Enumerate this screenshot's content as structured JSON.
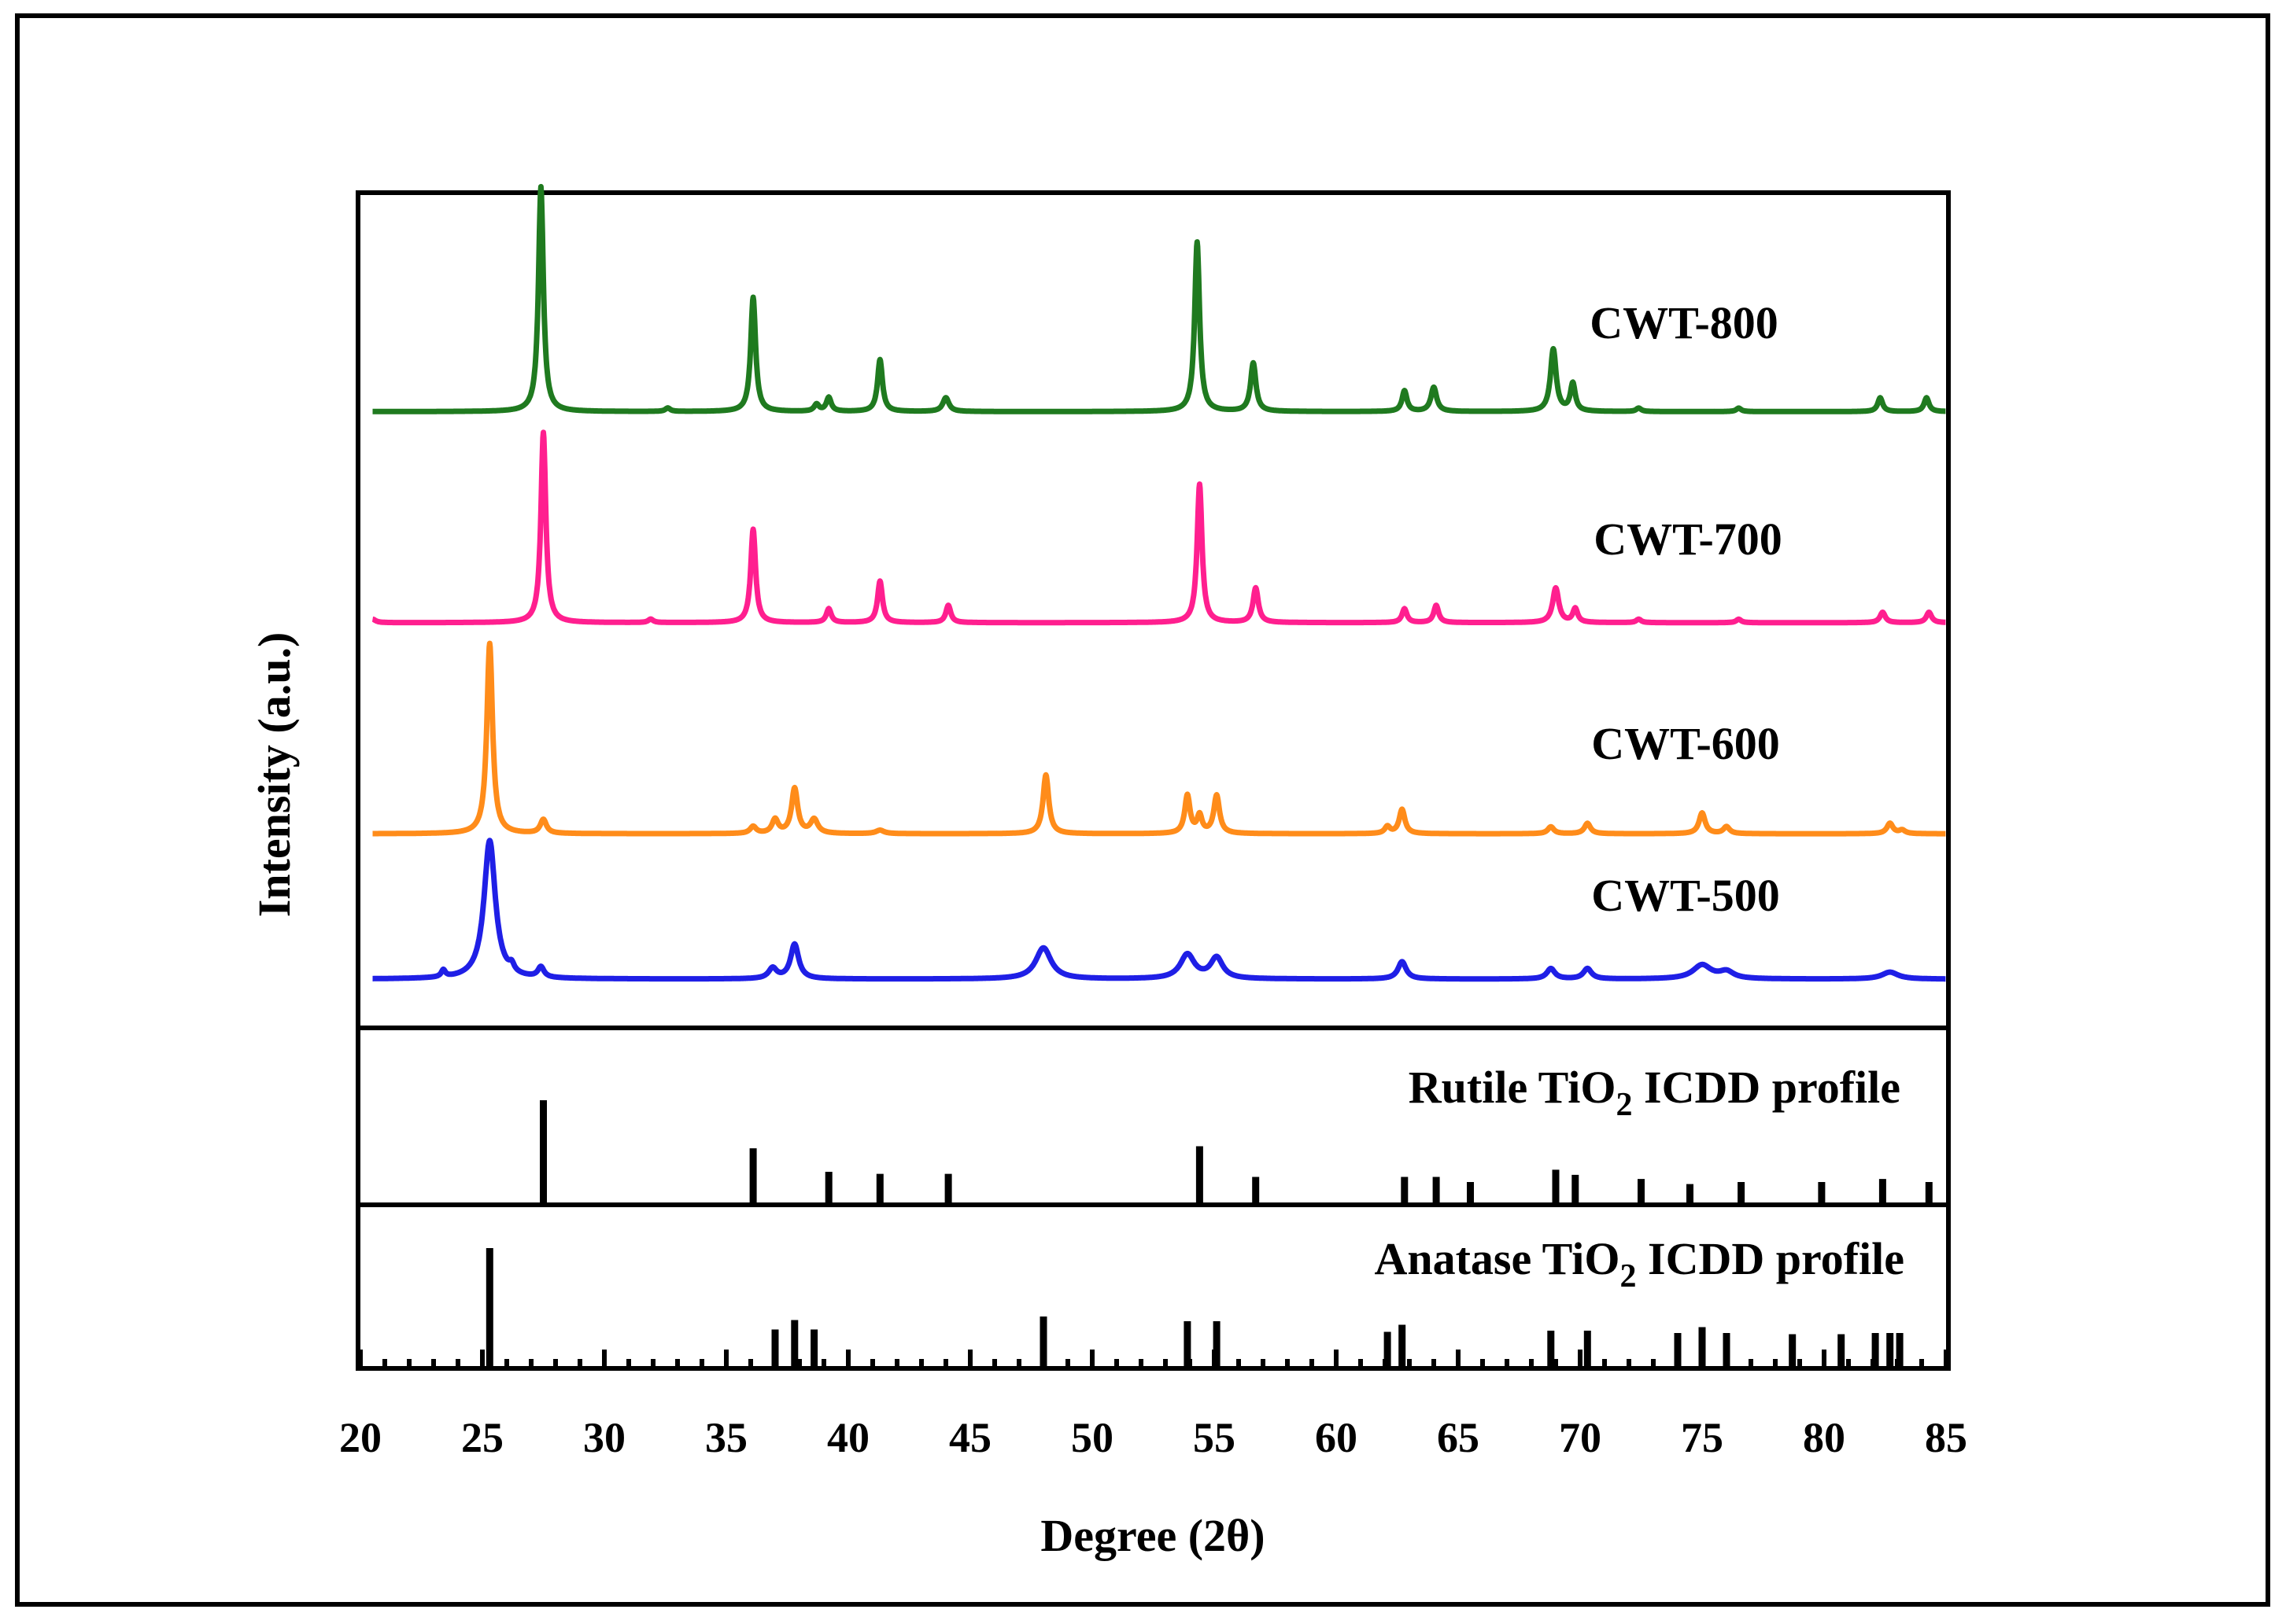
{
  "chart_data": {
    "type": "line",
    "title": "",
    "xlabel": "Degree (2θ)",
    "ylabel": "Intensity (a.u.)",
    "xlim": [
      20,
      85
    ],
    "x_ticks": [
      20,
      25,
      30,
      35,
      40,
      45,
      50,
      55,
      60,
      65,
      70,
      75,
      80,
      85
    ],
    "x_tick_labels": [
      "20",
      "25",
      "30",
      "35",
      "40",
      "45",
      "50",
      "55",
      "60",
      "65",
      "70",
      "75",
      "80",
      "85"
    ],
    "x_minor_step": 1,
    "series": [
      {
        "name": "CWT-500",
        "color": "#1f1fe6",
        "baseline": 0.0,
        "peaks": [
          {
            "x": 23.4,
            "h": 0.02,
            "w": 0.1
          },
          {
            "x": 25.3,
            "h": 0.4,
            "w": 0.28
          },
          {
            "x": 26.2,
            "h": 0.02,
            "w": 0.12
          },
          {
            "x": 27.4,
            "h": 0.03,
            "w": 0.15
          },
          {
            "x": 36.9,
            "h": 0.03,
            "w": 0.2
          },
          {
            "x": 37.8,
            "h": 0.1,
            "w": 0.2
          },
          {
            "x": 48.0,
            "h": 0.09,
            "w": 0.38
          },
          {
            "x": 53.9,
            "h": 0.07,
            "w": 0.35
          },
          {
            "x": 55.1,
            "h": 0.06,
            "w": 0.3
          },
          {
            "x": 62.7,
            "h": 0.05,
            "w": 0.2
          },
          {
            "x": 68.8,
            "h": 0.03,
            "w": 0.2
          },
          {
            "x": 70.3,
            "h": 0.03,
            "w": 0.2
          },
          {
            "x": 75.0,
            "h": 0.04,
            "w": 0.45
          },
          {
            "x": 76.0,
            "h": 0.02,
            "w": 0.35
          },
          {
            "x": 82.7,
            "h": 0.02,
            "w": 0.4
          }
        ]
      },
      {
        "name": "CWT-600",
        "color": "#ff8c1a",
        "baseline": 0.42,
        "peaks": [
          {
            "x": 25.3,
            "h": 0.55,
            "w": 0.14
          },
          {
            "x": 27.5,
            "h": 0.04,
            "w": 0.15
          },
          {
            "x": 36.1,
            "h": 0.02,
            "w": 0.15
          },
          {
            "x": 37.0,
            "h": 0.04,
            "w": 0.15
          },
          {
            "x": 37.8,
            "h": 0.13,
            "w": 0.15
          },
          {
            "x": 38.6,
            "h": 0.04,
            "w": 0.18
          },
          {
            "x": 41.3,
            "h": 0.01,
            "w": 0.2
          },
          {
            "x": 48.1,
            "h": 0.17,
            "w": 0.14
          },
          {
            "x": 53.9,
            "h": 0.11,
            "w": 0.13
          },
          {
            "x": 54.4,
            "h": 0.05,
            "w": 0.12
          },
          {
            "x": 55.1,
            "h": 0.11,
            "w": 0.14
          },
          {
            "x": 62.1,
            "h": 0.02,
            "w": 0.13
          },
          {
            "x": 62.7,
            "h": 0.07,
            "w": 0.14
          },
          {
            "x": 68.8,
            "h": 0.02,
            "w": 0.15
          },
          {
            "x": 70.3,
            "h": 0.03,
            "w": 0.15
          },
          {
            "x": 75.0,
            "h": 0.06,
            "w": 0.15
          },
          {
            "x": 76.0,
            "h": 0.02,
            "w": 0.15
          },
          {
            "x": 82.7,
            "h": 0.03,
            "w": 0.15
          },
          {
            "x": 83.2,
            "h": 0.01,
            "w": 0.15
          }
        ]
      },
      {
        "name": "CWT-700",
        "color": "#ff1f8f",
        "baseline": 1.03,
        "peaks": [
          {
            "x": 20.5,
            "h": 0.01,
            "w": 0.15
          },
          {
            "x": 27.5,
            "h": 0.55,
            "w": 0.12
          },
          {
            "x": 31.9,
            "h": 0.01,
            "w": 0.12
          },
          {
            "x": 36.1,
            "h": 0.27,
            "w": 0.12
          },
          {
            "x": 39.2,
            "h": 0.04,
            "w": 0.12
          },
          {
            "x": 41.3,
            "h": 0.12,
            "w": 0.12
          },
          {
            "x": 44.1,
            "h": 0.05,
            "w": 0.12
          },
          {
            "x": 54.4,
            "h": 0.4,
            "w": 0.12
          },
          {
            "x": 56.7,
            "h": 0.1,
            "w": 0.13
          },
          {
            "x": 62.8,
            "h": 0.04,
            "w": 0.12
          },
          {
            "x": 64.1,
            "h": 0.05,
            "w": 0.12
          },
          {
            "x": 69.0,
            "h": 0.1,
            "w": 0.15
          },
          {
            "x": 69.8,
            "h": 0.04,
            "w": 0.12
          },
          {
            "x": 72.4,
            "h": 0.01,
            "w": 0.12
          },
          {
            "x": 76.5,
            "h": 0.01,
            "w": 0.12
          },
          {
            "x": 82.4,
            "h": 0.03,
            "w": 0.13
          },
          {
            "x": 84.3,
            "h": 0.03,
            "w": 0.13
          }
        ]
      },
      {
        "name": "CWT-800",
        "color": "#1f7a1f",
        "baseline": 1.64,
        "peaks": [
          {
            "x": 27.4,
            "h": 0.65,
            "w": 0.12
          },
          {
            "x": 32.6,
            "h": 0.01,
            "w": 0.12
          },
          {
            "x": 36.1,
            "h": 0.33,
            "w": 0.12
          },
          {
            "x": 38.7,
            "h": 0.02,
            "w": 0.12
          },
          {
            "x": 39.2,
            "h": 0.04,
            "w": 0.12
          },
          {
            "x": 41.3,
            "h": 0.15,
            "w": 0.12
          },
          {
            "x": 44.0,
            "h": 0.04,
            "w": 0.15
          },
          {
            "x": 54.3,
            "h": 0.49,
            "w": 0.12
          },
          {
            "x": 56.6,
            "h": 0.14,
            "w": 0.13
          },
          {
            "x": 62.8,
            "h": 0.06,
            "w": 0.12
          },
          {
            "x": 64.0,
            "h": 0.07,
            "w": 0.14
          },
          {
            "x": 68.9,
            "h": 0.18,
            "w": 0.14
          },
          {
            "x": 69.7,
            "h": 0.08,
            "w": 0.12
          },
          {
            "x": 72.4,
            "h": 0.01,
            "w": 0.12
          },
          {
            "x": 76.5,
            "h": 0.01,
            "w": 0.12
          },
          {
            "x": 82.3,
            "h": 0.04,
            "w": 0.12
          },
          {
            "x": 84.2,
            "h": 0.04,
            "w": 0.12
          }
        ]
      }
    ],
    "series_labels": [
      "CWT-800",
      "CWT-700",
      "CWT-600",
      "CWT-500"
    ],
    "reference_profiles": [
      {
        "name": "Rutile TiO2 ICDD profile",
        "label_main": "Rutile TiO",
        "label_sub": "2",
        "label_tail": " ICDD profile",
        "lines": [
          {
            "x": 27.5,
            "h": 1.0
          },
          {
            "x": 36.1,
            "h": 0.53
          },
          {
            "x": 39.2,
            "h": 0.3
          },
          {
            "x": 41.3,
            "h": 0.28
          },
          {
            "x": 44.1,
            "h": 0.28
          },
          {
            "x": 54.4,
            "h": 0.55
          },
          {
            "x": 56.7,
            "h": 0.25
          },
          {
            "x": 62.8,
            "h": 0.25
          },
          {
            "x": 64.1,
            "h": 0.25
          },
          {
            "x": 65.5,
            "h": 0.2
          },
          {
            "x": 69.0,
            "h": 0.32
          },
          {
            "x": 69.8,
            "h": 0.27
          },
          {
            "x": 72.5,
            "h": 0.23
          },
          {
            "x": 74.5,
            "h": 0.18
          },
          {
            "x": 76.6,
            "h": 0.2
          },
          {
            "x": 79.9,
            "h": 0.2
          },
          {
            "x": 82.4,
            "h": 0.23
          },
          {
            "x": 84.3,
            "h": 0.2
          }
        ]
      },
      {
        "name": "Anatase TiO2 ICDD profile",
        "label_main": "Anatase TiO",
        "label_sub": "2",
        "label_tail": " ICDD profile",
        "lines": [
          {
            "x": 25.3,
            "h": 1.0
          },
          {
            "x": 37.0,
            "h": 0.31
          },
          {
            "x": 37.8,
            "h": 0.39
          },
          {
            "x": 38.6,
            "h": 0.31
          },
          {
            "x": 48.0,
            "h": 0.42
          },
          {
            "x": 53.9,
            "h": 0.38
          },
          {
            "x": 55.1,
            "h": 0.38
          },
          {
            "x": 62.1,
            "h": 0.29
          },
          {
            "x": 62.7,
            "h": 0.35
          },
          {
            "x": 68.8,
            "h": 0.3
          },
          {
            "x": 70.3,
            "h": 0.3
          },
          {
            "x": 74.0,
            "h": 0.28
          },
          {
            "x": 75.0,
            "h": 0.33
          },
          {
            "x": 76.0,
            "h": 0.28
          },
          {
            "x": 78.7,
            "h": 0.27
          },
          {
            "x": 80.7,
            "h": 0.27
          },
          {
            "x": 82.1,
            "h": 0.28
          },
          {
            "x": 82.7,
            "h": 0.28
          },
          {
            "x": 83.1,
            "h": 0.28
          }
        ]
      }
    ]
  }
}
